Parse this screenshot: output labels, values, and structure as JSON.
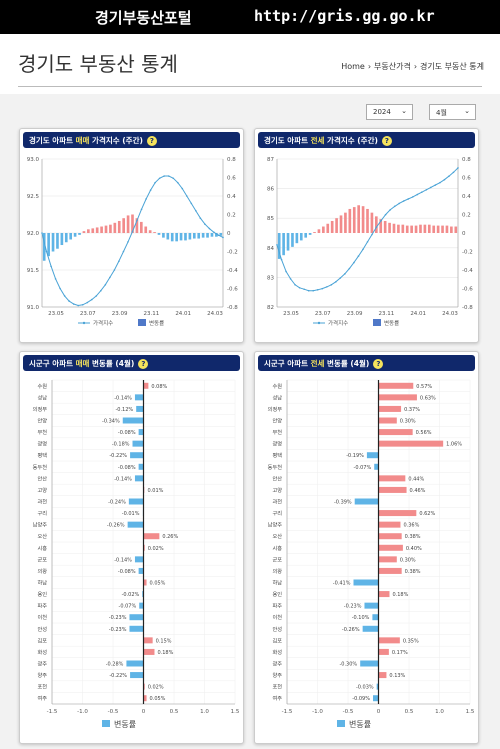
{
  "topbar": {
    "brand": "경기부동산포털",
    "url": "http://gris.gg.go.kr"
  },
  "header": {
    "title": "경기도 부동산 통계",
    "breadcrumb": [
      "Home",
      "부동산가격",
      "경기도 부동산 통계"
    ]
  },
  "filters": {
    "year": "2024",
    "month": "4월"
  },
  "colors": {
    "navy": "#10286b",
    "highlight": "#f5e35c",
    "line": "#4aa3d6",
    "bar_pos": "#f28b8b",
    "bar_neg": "#5fb4e6",
    "legend_rate": "#4f78c8"
  },
  "panels": [
    {
      "title_pre": "경기도 아파트 ",
      "title_hl": "매매",
      "title_post": " 가격지수 (주간)",
      "help": "?"
    },
    {
      "title_pre": "경기도 아파트 ",
      "title_hl": "전세",
      "title_post": " 가격지수 (주간)",
      "help": "?"
    },
    {
      "title_pre": "시군구 아파트 ",
      "title_hl": "매매",
      "title_post": " 변동률 (4월)",
      "help": "?"
    },
    {
      "title_pre": "시군구 아파트 ",
      "title_hl": "전세",
      "title_post": " 변동률 (4월)",
      "help": "?"
    }
  ],
  "chart_data": [
    {
      "type": "line",
      "xticks": [
        "23.05",
        "23.07",
        "23.09",
        "23.11",
        "24.01",
        "24.03"
      ],
      "yleft": {
        "ticks": [
          "93.0",
          "92.5",
          "92.0",
          "91.5",
          "91.0"
        ],
        "range": [
          91.0,
          93.0
        ]
      },
      "yright": {
        "ticks": [
          "0.8",
          "0.6",
          "0.4",
          "0.2",
          "0",
          "-0.2",
          "-0.4",
          "-0.6",
          "-0.8"
        ],
        "range": [
          -0.8,
          0.8
        ]
      },
      "legend": [
        "가격지수",
        "변동률"
      ],
      "index": [
        92.0,
        91.75,
        91.55,
        91.38,
        91.25,
        91.15,
        91.08,
        91.04,
        91.02,
        91.03,
        91.06,
        91.1,
        91.15,
        91.22,
        91.3,
        91.4,
        91.5,
        91.62,
        91.75,
        91.88,
        92.02,
        92.17,
        92.32,
        92.46,
        92.58,
        92.68,
        92.74,
        92.77,
        92.77,
        92.74,
        92.68,
        92.6,
        92.5,
        92.4,
        92.3,
        92.2,
        92.12,
        92.06,
        92.01,
        91.97,
        91.94
      ],
      "rate": [
        -0.3,
        -0.25,
        -0.2,
        -0.17,
        -0.13,
        -0.1,
        -0.07,
        -0.04,
        -0.02,
        0.02,
        0.04,
        0.05,
        0.06,
        0.07,
        0.08,
        0.09,
        0.11,
        0.13,
        0.16,
        0.19,
        0.2,
        0.16,
        0.12,
        0.07,
        0.03,
        0.01,
        -0.02,
        -0.05,
        -0.07,
        -0.09,
        -0.09,
        -0.08,
        -0.08,
        -0.07,
        -0.06,
        -0.06,
        -0.05,
        -0.05,
        -0.04,
        -0.04,
        -0.03
      ]
    },
    {
      "type": "line",
      "xticks": [
        "23.05",
        "23.07",
        "23.09",
        "23.11",
        "24.01",
        "24.03"
      ],
      "yleft": {
        "ticks": [
          "87",
          "86",
          "85",
          "84",
          "83",
          "82"
        ],
        "range": [
          82,
          87
        ]
      },
      "yright": {
        "ticks": [
          "0.8",
          "0.6",
          "0.4",
          "0.2",
          "0",
          "-0.2",
          "-0.4",
          "-0.6",
          "-0.8"
        ],
        "range": [
          -0.8,
          0.8
        ]
      },
      "legend": [
        "가격지수",
        "변동률"
      ],
      "index": [
        84.1,
        83.6,
        83.2,
        82.95,
        82.75,
        82.65,
        82.6,
        82.55,
        82.55,
        82.58,
        82.62,
        82.68,
        82.75,
        82.85,
        82.98,
        83.12,
        83.3,
        83.5,
        83.72,
        83.95,
        84.2,
        84.45,
        84.7,
        84.92,
        85.12,
        85.28,
        85.4,
        85.5,
        85.58,
        85.65,
        85.72,
        85.8,
        85.88,
        85.96,
        86.04,
        86.12,
        86.2,
        86.3,
        86.42,
        86.55,
        86.7
      ],
      "rate": [
        -0.28,
        -0.24,
        -0.19,
        -0.15,
        -0.11,
        -0.08,
        -0.05,
        -0.02,
        0.01,
        0.04,
        0.07,
        0.1,
        0.13,
        0.16,
        0.19,
        0.22,
        0.26,
        0.28,
        0.3,
        0.29,
        0.26,
        0.22,
        0.18,
        0.15,
        0.13,
        0.11,
        0.1,
        0.09,
        0.09,
        0.08,
        0.08,
        0.08,
        0.09,
        0.09,
        0.09,
        0.08,
        0.08,
        0.08,
        0.08,
        0.07,
        0.07
      ]
    },
    {
      "type": "bar",
      "orientation": "horizontal",
      "legend": "변동률",
      "xrange": [
        -1.5,
        1.5
      ],
      "xticks": [
        "-1.5",
        "-1.0",
        "-0.5",
        "0",
        "0.5",
        "1.0",
        "1.5"
      ],
      "categories": [
        "수원",
        "성남",
        "의정부",
        "안양",
        "부천",
        "광명",
        "평택",
        "동두천",
        "안산",
        "고양",
        "과천",
        "구리",
        "남양주",
        "오산",
        "시흥",
        "군포",
        "의왕",
        "하남",
        "용인",
        "파주",
        "이천",
        "안성",
        "김포",
        "화성",
        "광주",
        "양주",
        "포천",
        "여주"
      ],
      "values": [
        0.08,
        -0.14,
        -0.12,
        -0.34,
        -0.08,
        -0.18,
        -0.22,
        -0.08,
        -0.14,
        0.01,
        -0.24,
        -0.01,
        -0.26,
        0.26,
        0.02,
        -0.14,
        -0.08,
        0.05,
        -0.02,
        -0.07,
        -0.23,
        -0.23,
        0.15,
        0.18,
        -0.28,
        -0.22,
        0.02,
        0.05
      ],
      "labels": [
        "0.08%",
        "-0.14%",
        "-0.12%",
        "-0.34%",
        "-0.08%",
        "-0.18%",
        "-0.22%",
        "-0.08%",
        "-0.14%",
        "0.01%",
        "-0.24%",
        "-0.01%",
        "-0.26%",
        "0.26%",
        "0.02%",
        "-0.14%",
        "-0.08%",
        "0.05%",
        "-0.02%",
        "-0.07%",
        "-0.23%",
        "-0.23%",
        "0.15%",
        "0.18%",
        "-0.28%",
        "-0.22%",
        "0.02%",
        "0.05%"
      ]
    },
    {
      "type": "bar",
      "orientation": "horizontal",
      "legend": "변동률",
      "xrange": [
        -1.5,
        1.5
      ],
      "xticks": [
        "-1.5",
        "-1.0",
        "-0.5",
        "0",
        "0.5",
        "1.0",
        "1.5"
      ],
      "categories": [
        "수원",
        "성남",
        "의정부",
        "안양",
        "부천",
        "광명",
        "평택",
        "동두천",
        "안산",
        "고양",
        "과천",
        "구리",
        "남양주",
        "오산",
        "시흥",
        "군포",
        "의왕",
        "하남",
        "용인",
        "파주",
        "이천",
        "안성",
        "김포",
        "화성",
        "광주",
        "양주",
        "포천",
        "여주"
      ],
      "values": [
        0.57,
        0.63,
        0.37,
        0.3,
        0.56,
        1.06,
        -0.19,
        -0.07,
        0.44,
        0.46,
        -0.39,
        0.62,
        0.36,
        0.38,
        0.4,
        0.3,
        0.38,
        -0.41,
        0.18,
        -0.23,
        -0.1,
        -0.26,
        0.35,
        0.17,
        -0.3,
        0.13,
        -0.03,
        -0.09
      ],
      "labels": [
        "0.57%",
        "0.63%",
        "0.37%",
        "0.30%",
        "0.56%",
        "1.06%",
        "-0.19%",
        "-0.07%",
        "0.44%",
        "0.46%",
        "-0.39%",
        "0.62%",
        "0.36%",
        "0.38%",
        "0.40%",
        "0.30%",
        "0.38%",
        "-0.41%",
        "0.18%",
        "-0.23%",
        "-0.10%",
        "-0.26%",
        "0.35%",
        "0.17%",
        "-0.30%",
        "0.13%",
        "-0.03%",
        "-0.09%"
      ]
    }
  ]
}
